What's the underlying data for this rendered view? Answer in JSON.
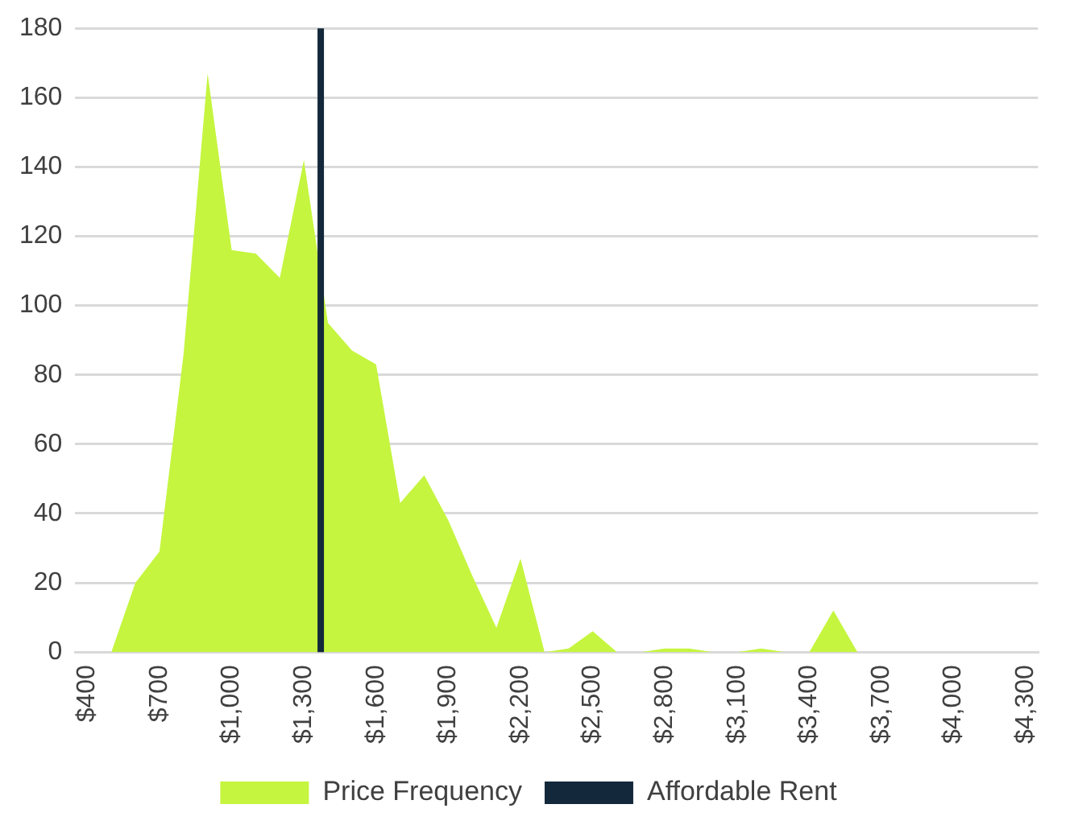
{
  "chart_data": {
    "type": "area",
    "x": [
      400,
      500,
      600,
      700,
      800,
      900,
      1000,
      1100,
      1200,
      1300,
      1400,
      1500,
      1600,
      1700,
      1800,
      1900,
      2000,
      2100,
      2200,
      2300,
      2400,
      2500,
      2600,
      2700,
      2800,
      2900,
      3000,
      3100,
      3200,
      3300,
      3400,
      3500,
      3600,
      3700,
      3800,
      3900,
      4000,
      4100,
      4200,
      4300
    ],
    "series": [
      {
        "name": "Price Frequency",
        "color": "#c5f53f",
        "values": [
          0,
          0,
          20,
          29,
          86,
          167,
          116,
          115,
          108,
          142,
          95,
          87,
          83,
          43,
          51,
          38,
          22,
          7,
          27,
          0,
          1,
          6,
          0,
          0,
          1,
          1,
          0,
          0,
          1,
          0,
          0,
          12,
          0,
          0,
          0,
          0,
          0,
          0,
          0,
          0
        ]
      }
    ],
    "xlim": [
      350,
      4350
    ],
    "xticks": [
      {
        "value": 400,
        "label": "$400"
      },
      {
        "value": 700,
        "label": "$700"
      },
      {
        "value": 1000,
        "label": "$1,000"
      },
      {
        "value": 1300,
        "label": "$1,300"
      },
      {
        "value": 1600,
        "label": "$1,600"
      },
      {
        "value": 1900,
        "label": "$1,900"
      },
      {
        "value": 2200,
        "label": "$2,200"
      },
      {
        "value": 2500,
        "label": "$2,500"
      },
      {
        "value": 2800,
        "label": "$2,800"
      },
      {
        "value": 3100,
        "label": "$3,100"
      },
      {
        "value": 3400,
        "label": "$3,400"
      },
      {
        "value": 3700,
        "label": "$3,700"
      },
      {
        "value": 4000,
        "label": "$4,000"
      },
      {
        "value": 4300,
        "label": "$4,300"
      }
    ],
    "ylim": [
      0,
      180
    ],
    "yticks": [
      0,
      20,
      40,
      60,
      80,
      100,
      120,
      140,
      160,
      180
    ],
    "ref_lines": [
      {
        "axis": "x",
        "value": 1370,
        "label": "Affordable Rent",
        "color": "#13283a"
      }
    ],
    "grid": "y",
    "legend": "bottom"
  }
}
